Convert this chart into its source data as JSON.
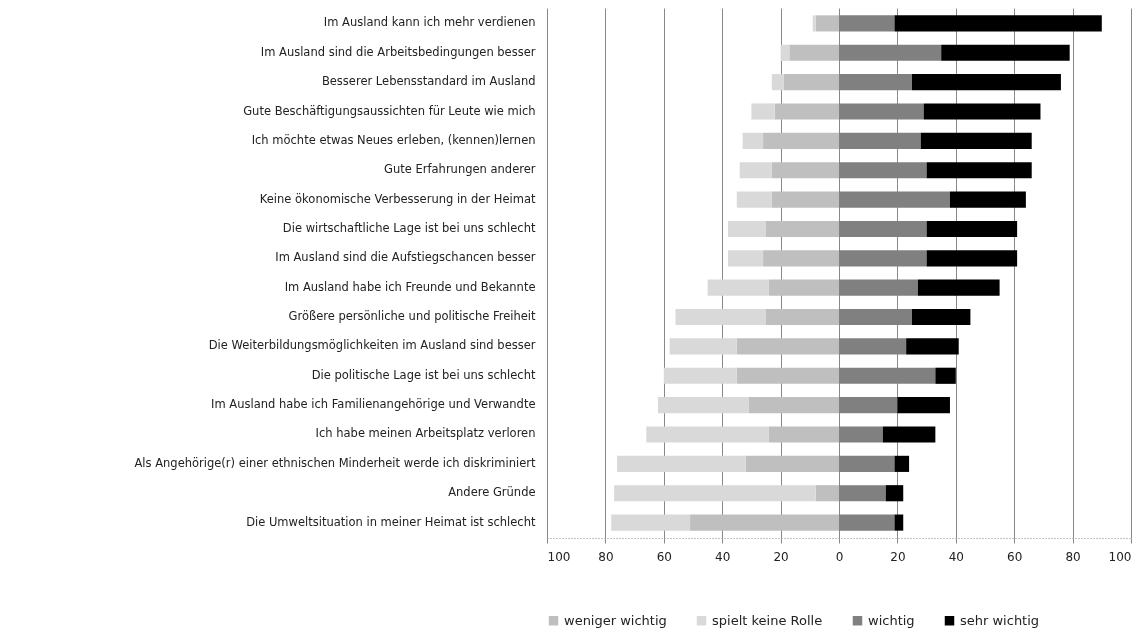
{
  "chart_data": {
    "type": "bar",
    "orientation": "horizontal",
    "stacked": true,
    "categories": [
      "Im Ausland kann ich mehr verdienen",
      "Im Ausland sind die Arbeitsbedingungen  besser",
      "Besserer Lebensstandard im Ausland",
      "Gute Beschäftigungsaussichten  für Leute wie mich",
      "Ich möchte etwas Neues erleben, (kennen)lernen",
      "Gute Erfahrungen anderer",
      "Keine ökonomische Verbesserung  in der Heimat",
      "Die wirtschaftliche Lage ist bei uns schlecht",
      "Im Ausland sind die Aufstiegschancen  besser",
      "Im Ausland habe ich Freunde und Bekannte",
      "Größere persönliche und politische Freiheit",
      "Die Weiterbildungsmöglichkeiten  im Ausland sind besser",
      "Die politische Lage ist bei uns schlecht",
      "Im Ausland habe ich Familienangehörige und Verwandte",
      "Ich habe meinen  Arbeitsplatz verloren",
      "Als Angehörige(r) einer ethnischen Minderheit werde ich diskriminiert",
      "Andere Gründe",
      "Die Umweltsituation in meiner Heimat ist schlecht"
    ],
    "series": [
      {
        "name": "weniger wichtig",
        "color": "#bfbfbf",
        "values": [
          -8,
          -17,
          -19,
          -22,
          -26,
          -23,
          -23,
          -25,
          -26,
          -24,
          -25,
          -35,
          -35,
          -31,
          -24,
          -32,
          -8,
          -51
        ]
      },
      {
        "name": "spielt keine Rolle",
        "color": "#d9d9d9",
        "values": [
          -1,
          -3,
          -4,
          -8,
          -7,
          -11,
          -12,
          -13,
          -12,
          -21,
          -31,
          -23,
          -25,
          -31,
          -42,
          -44,
          -69,
          -27
        ]
      },
      {
        "name": "wichtig",
        "color": "#808080",
        "values": [
          19,
          35,
          25,
          29,
          28,
          30,
          38,
          30,
          30,
          27,
          25,
          23,
          33,
          20,
          15,
          19,
          16,
          19
        ]
      },
      {
        "name": "sehr wichtig",
        "color": "#000000",
        "values": [
          71,
          44,
          51,
          40,
          38,
          36,
          26,
          31,
          31,
          28,
          20,
          18,
          7,
          18,
          18,
          5,
          6,
          3
        ]
      }
    ],
    "xlim": [
      -100,
      100
    ],
    "xticks": [
      {
        "value": -100,
        "label": "100"
      },
      {
        "value": -80,
        "label": "80"
      },
      {
        "value": -60,
        "label": "60"
      },
      {
        "value": -40,
        "label": "40"
      },
      {
        "value": -20,
        "label": "20"
      },
      0,
      20,
      40,
      60,
      80,
      100
    ],
    "grid": "x",
    "legend": "bottom"
  }
}
